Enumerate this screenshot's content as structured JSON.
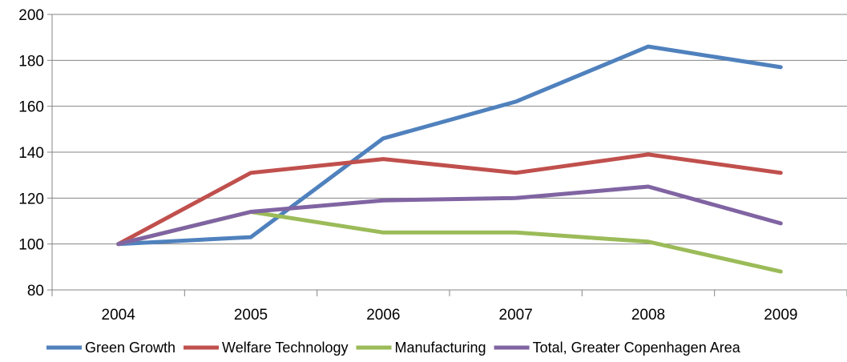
{
  "chart_data": {
    "type": "line",
    "title": "",
    "xlabel": "",
    "ylabel": "",
    "categories": [
      "2004",
      "2005",
      "2006",
      "2007",
      "2008",
      "2009"
    ],
    "ylim": [
      80,
      200
    ],
    "yticks": [
      "80",
      "100",
      "120",
      "140",
      "160",
      "180",
      "200"
    ],
    "grid": true,
    "legend_position": "bottom",
    "series": [
      {
        "name": "Green Growth",
        "color": "#4f81bd",
        "values": [
          100,
          103,
          146,
          162,
          186,
          177
        ]
      },
      {
        "name": "Welfare Technology",
        "color": "#c0504d",
        "values": [
          100,
          131,
          137,
          131,
          139,
          131
        ]
      },
      {
        "name": "Manufacturing",
        "color": "#9bbb59",
        "values": [
          100,
          114,
          105,
          105,
          101,
          88
        ]
      },
      {
        "name": "Total, Greater Copenhagen Area",
        "color": "#8064a2",
        "values": [
          100,
          114,
          119,
          120,
          125,
          109
        ]
      }
    ]
  }
}
